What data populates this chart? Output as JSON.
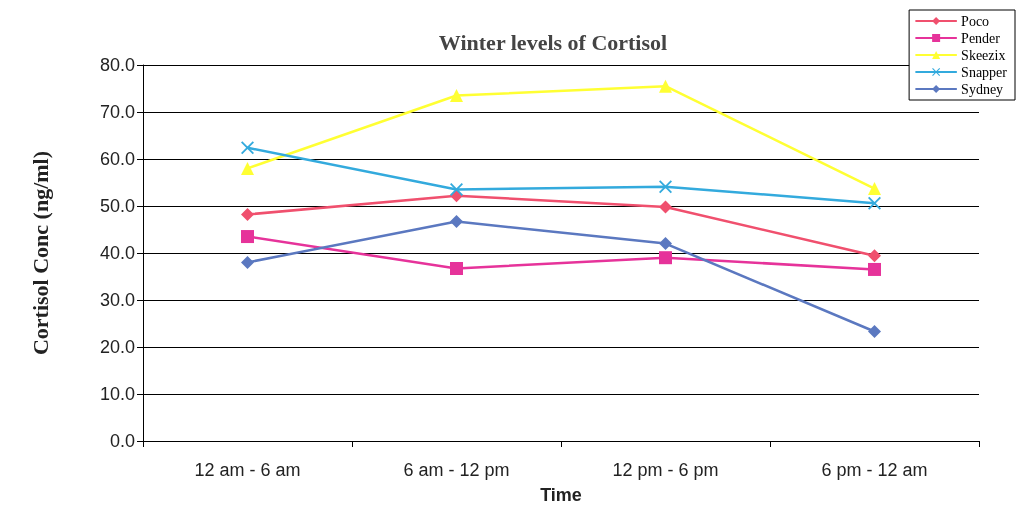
{
  "chart_data": {
    "type": "line",
    "title": "Winter levels of Cortisol",
    "xlabel": "Time",
    "ylabel": "Cortisol Conc (ng/ml)",
    "categories": [
      "12 am - 6 am",
      "6 am - 12 pm",
      "12 pm - 6 pm",
      "6 pm - 12 am"
    ],
    "series": [
      {
        "name": "Poco",
        "color": "#f0506e",
        "marker": "diamond",
        "values": [
          48.2,
          52.2,
          49.8,
          39.4
        ]
      },
      {
        "name": "Pender",
        "color": "#e6339a",
        "marker": "square",
        "values": [
          43.5,
          36.7,
          39.0,
          36.5
        ]
      },
      {
        "name": "Skeezix",
        "color": "#ffff33",
        "marker": "triangle",
        "values": [
          58.0,
          73.5,
          75.5,
          53.7
        ]
      },
      {
        "name": "Snapper",
        "color": "#33aadd",
        "marker": "cross",
        "values": [
          62.4,
          53.5,
          54.1,
          50.6
        ]
      },
      {
        "name": "Sydney",
        "color": "#5b78c0",
        "marker": "diamond",
        "values": [
          38.0,
          46.7,
          42.0,
          23.3
        ]
      }
    ],
    "ylim": [
      0,
      80
    ],
    "yticks": [
      {
        "value": 0,
        "label": "0.0"
      },
      {
        "value": 10,
        "label": "10.0"
      },
      {
        "value": 20,
        "label": "20.0"
      },
      {
        "value": 30,
        "label": "30.0"
      },
      {
        "value": 40,
        "label": "40.0"
      },
      {
        "value": 50,
        "label": "50.0"
      },
      {
        "value": 60,
        "label": "60.0"
      },
      {
        "value": 70,
        "label": "70.0"
      },
      {
        "value": 80,
        "label": "80.0"
      }
    ],
    "grid": "y",
    "legend": "top right",
    "line_style": "solid"
  }
}
